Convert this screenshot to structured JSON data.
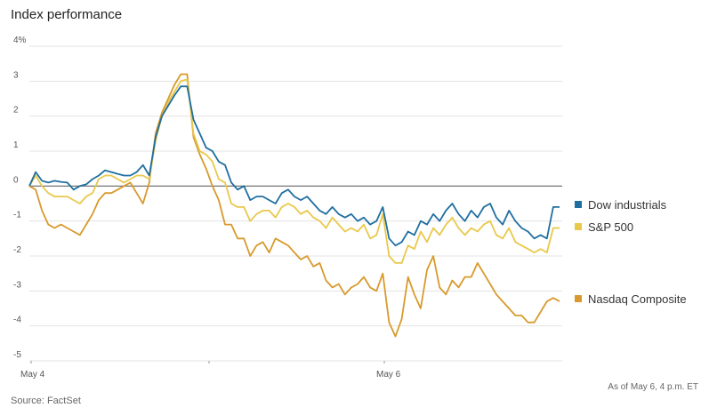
{
  "title": "Index performance",
  "source": "Source: FactSet",
  "as_of": "As of May 6, 4 p.m. ET",
  "colors": {
    "dow": "#1e6fa0",
    "sp": "#e9c84a",
    "nasdaq": "#d89a2c",
    "grid": "#e3e3e3",
    "zero": "#666666"
  },
  "chart_data": {
    "type": "line",
    "x_tick_labels": [
      "May 4",
      "May 6"
    ],
    "y_tick_labels": [
      "4%",
      "3",
      "2",
      "1",
      "0",
      "-1",
      "-2",
      "-3",
      "-4",
      "-5"
    ],
    "ylim": [
      -5,
      4
    ],
    "grid": true,
    "legend": "right",
    "series": [
      {
        "name": "Dow industrials",
        "color": "#1e6fa0",
        "values": [
          0,
          0.4,
          0.15,
          0.1,
          0.15,
          0.12,
          0.1,
          -0.1,
          0,
          0.05,
          0.2,
          0.3,
          0.45,
          0.4,
          0.35,
          0.3,
          0.3,
          0.4,
          0.6,
          0.3,
          1.4,
          2.0,
          2.3,
          2.6,
          2.85,
          2.85,
          1.9,
          1.5,
          1.1,
          1.0,
          0.7,
          0.6,
          0.1,
          -0.1,
          0,
          -0.4,
          -0.3,
          -0.3,
          -0.4,
          -0.5,
          -0.2,
          -0.1,
          -0.3,
          -0.4,
          -0.3,
          -0.5,
          -0.7,
          -0.8,
          -0.6,
          -0.8,
          -0.9,
          -0.8,
          -1.0,
          -0.9,
          -1.1,
          -1.0,
          -0.6,
          -1.5,
          -1.7,
          -1.6,
          -1.3,
          -1.4,
          -1.0,
          -1.1,
          -0.8,
          -1.0,
          -0.7,
          -0.5,
          -0.8,
          -1.0,
          -0.7,
          -0.9,
          -0.6,
          -0.5,
          -0.9,
          -1.1,
          -0.7,
          -1.0,
          -1.2,
          -1.3,
          -1.5,
          -1.4,
          -1.5,
          -0.6,
          -0.6
        ]
      },
      {
        "name": "S&P 500",
        "color": "#e9c84a",
        "values": [
          0,
          0.3,
          0,
          -0.2,
          -0.3,
          -0.3,
          -0.3,
          -0.4,
          -0.5,
          -0.3,
          -0.2,
          0.2,
          0.3,
          0.3,
          0.2,
          0.1,
          0.2,
          0.3,
          0.3,
          0.2,
          1.3,
          2.0,
          2.4,
          2.7,
          3.0,
          3.05,
          1.5,
          1.0,
          0.9,
          0.7,
          0.2,
          0.1,
          -0.5,
          -0.6,
          -0.6,
          -1.0,
          -0.8,
          -0.7,
          -0.7,
          -0.9,
          -0.6,
          -0.5,
          -0.6,
          -0.8,
          -0.7,
          -0.9,
          -1.0,
          -1.2,
          -0.9,
          -1.1,
          -1.3,
          -1.2,
          -1.3,
          -1.1,
          -1.5,
          -1.4,
          -0.8,
          -2.0,
          -2.2,
          -2.2,
          -1.7,
          -1.8,
          -1.3,
          -1.6,
          -1.2,
          -1.4,
          -1.1,
          -0.9,
          -1.2,
          -1.4,
          -1.2,
          -1.3,
          -1.1,
          -1.0,
          -1.4,
          -1.5,
          -1.2,
          -1.6,
          -1.7,
          -1.8,
          -1.9,
          -1.8,
          -1.9,
          -1.2,
          -1.2
        ]
      },
      {
        "name": "Nasdaq Composite",
        "color": "#d89a2c",
        "values": [
          0,
          -0.1,
          -0.7,
          -1.1,
          -1.2,
          -1.1,
          -1.2,
          -1.3,
          -1.4,
          -1.1,
          -0.8,
          -0.4,
          -0.2,
          -0.2,
          -0.1,
          0,
          0.1,
          -0.2,
          -0.5,
          0.1,
          1.5,
          2.1,
          2.5,
          2.9,
          3.2,
          3.2,
          1.4,
          0.9,
          0.5,
          0,
          -0.4,
          -1.1,
          -1.1,
          -1.5,
          -1.5,
          -2.0,
          -1.7,
          -1.6,
          -1.9,
          -1.5,
          -1.6,
          -1.7,
          -1.9,
          -2.1,
          -2.0,
          -2.3,
          -2.2,
          -2.7,
          -2.9,
          -2.8,
          -3.1,
          -2.9,
          -2.8,
          -2.6,
          -2.9,
          -3.0,
          -2.5,
          -3.9,
          -4.3,
          -3.8,
          -2.6,
          -3.1,
          -3.5,
          -2.4,
          -2.0,
          -2.9,
          -3.1,
          -2.7,
          -2.9,
          -2.6,
          -2.6,
          -2.2,
          -2.5,
          -2.8,
          -3.1,
          -3.3,
          -3.5,
          -3.7,
          -3.7,
          -3.9,
          -3.9,
          -3.6,
          -3.3,
          -3.2,
          -3.3
        ]
      }
    ]
  }
}
